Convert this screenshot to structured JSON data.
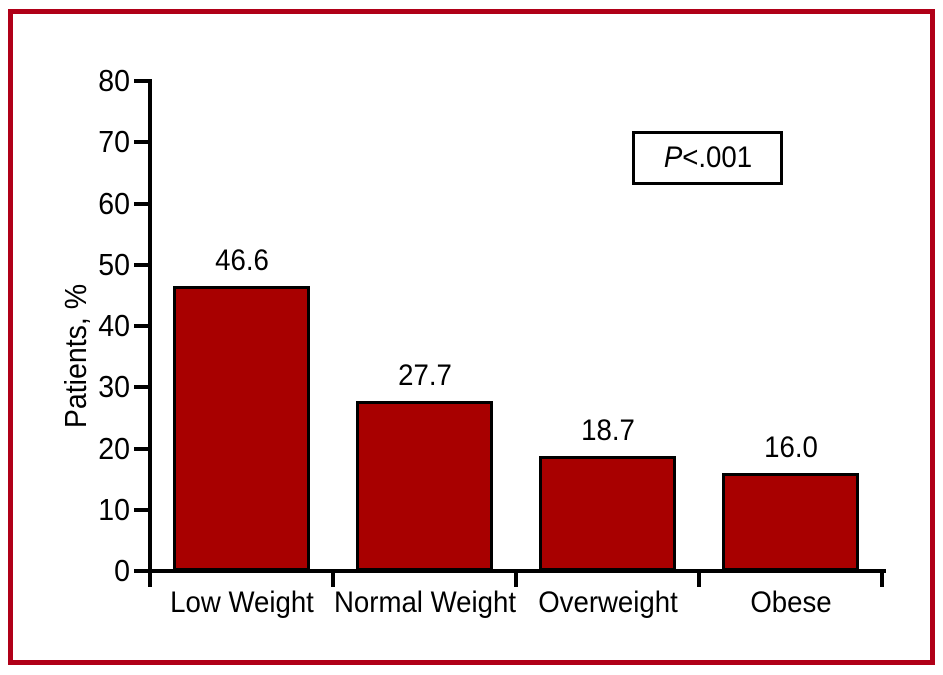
{
  "chart_data": {
    "type": "bar",
    "title": "",
    "categories": [
      "Low Weight",
      "Normal Weight",
      "Overweight",
      "Obese"
    ],
    "values": [
      46.6,
      27.7,
      18.7,
      16.0
    ],
    "value_labels": [
      "46.6",
      "27.7",
      "18.7",
      "16.0"
    ],
    "xlabel": "",
    "ylabel": "Patients, %",
    "ylim": [
      0,
      80
    ],
    "yticks": [
      0,
      10,
      20,
      30,
      40,
      50,
      60,
      70,
      80
    ],
    "grid": false,
    "legend": null,
    "annotation": "P<.001",
    "annotation_parts": {
      "italic": "P",
      "rest": "<.001"
    },
    "bar_color": "#a80000",
    "bar_edge_color": "#000000"
  },
  "colors": {
    "frame_border": "#b00018",
    "axis": "#000000",
    "text": "#000000",
    "background": "#ffffff"
  }
}
